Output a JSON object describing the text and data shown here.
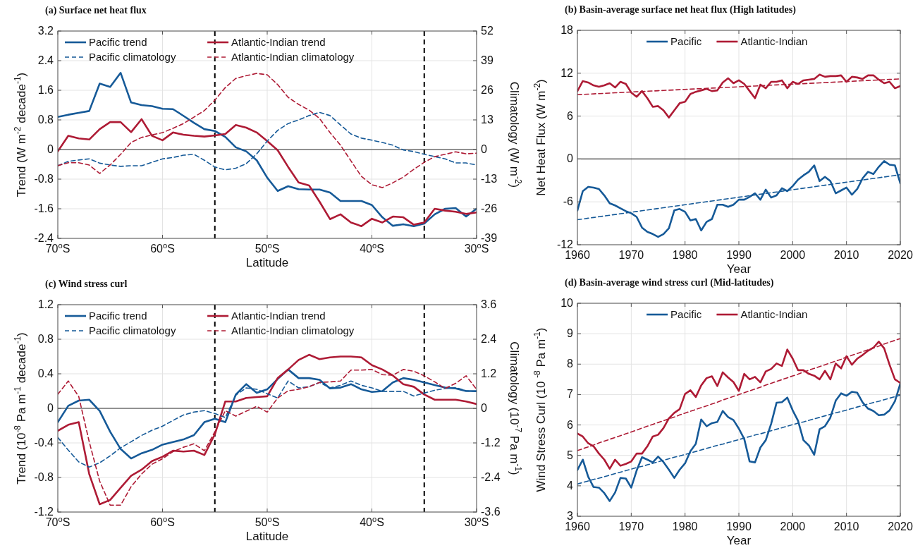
{
  "chart_data": [
    {
      "type": "line",
      "title": "(a) Surface net heat flux",
      "xlabel": "Latitude",
      "ylabel": "Trend  (W m$^{-2}$ decade$^{-1}$)",
      "y2label": "Climatology (W m$^{-2}$)",
      "x": [
        -70,
        -69,
        -68,
        -67,
        -66,
        -65,
        -64,
        -63,
        -62,
        -61,
        -60,
        -59,
        -58,
        -57,
        -56,
        -55,
        -54,
        -53,
        -52,
        -51,
        -50,
        -49,
        -48,
        -47,
        -46,
        -45,
        -44,
        -43,
        -42,
        -41,
        -40,
        -39,
        -38,
        -37,
        -36,
        -35,
        -34,
        -33,
        -32,
        -31,
        -30
      ],
      "xlim": [
        -70,
        -30
      ],
      "xticks": [
        {
          "value": -70,
          "label": "70$^{o}$S"
        },
        {
          "value": -60,
          "label": "60$^{o}$S"
        },
        {
          "value": -50,
          "label": "50$^{o}$S"
        },
        {
          "value": -40,
          "label": "40$^{o}$S"
        },
        {
          "value": -30,
          "label": "30$^{o}$S"
        }
      ],
      "ylim": [
        -2.4,
        3.2
      ],
      "yticks": [
        -2.4,
        -1.6,
        -0.8,
        0,
        0.8,
        1.6,
        2.4,
        3.2
      ],
      "y2lim": [
        -39,
        52
      ],
      "y2ticks": [
        -39,
        -26,
        -13,
        0,
        13,
        26,
        39,
        52
      ],
      "grid": true,
      "legend": "top left",
      "ref_lines": [
        {
          "axis": "y",
          "value": 0,
          "color": "#333333",
          "line_style": "solid"
        },
        {
          "axis": "x",
          "value": -55,
          "color": "#000000",
          "line_style": "dashed"
        },
        {
          "axis": "x",
          "value": -35,
          "color": "#000000",
          "line_style": "dashed"
        }
      ],
      "series": [
        {
          "name": "Pacific trend",
          "color": "#165a98",
          "line_style": "solid",
          "values": [
            0.88,
            0.94,
            0.99,
            1.04,
            1.78,
            1.69,
            2.07,
            1.27,
            1.2,
            1.17,
            1.1,
            1.09,
            0.91,
            0.72,
            0.55,
            0.5,
            0.34,
            0.06,
            -0.05,
            -0.29,
            -0.76,
            -1.12,
            -0.99,
            -1.07,
            -1.08,
            -1.08,
            -1.16,
            -1.39,
            -1.39,
            -1.39,
            -1.5,
            -1.83,
            -2.06,
            -2.02,
            -2.07,
            -2.0,
            -1.75,
            -1.6,
            -1.58,
            -1.81,
            -1.6
          ]
        },
        {
          "name": "Atlantic-Indian trend",
          "color": "#ae1b35",
          "line_style": "solid",
          "values": [
            -0.05,
            0.37,
            0.3,
            0.27,
            0.55,
            0.74,
            0.74,
            0.47,
            0.82,
            0.37,
            0.25,
            0.46,
            0.4,
            0.37,
            0.35,
            0.38,
            0.42,
            0.66,
            0.59,
            0.46,
            0.23,
            -0.02,
            -0.47,
            -0.89,
            -0.97,
            -1.41,
            -1.88,
            -1.75,
            -1.97,
            -2.07,
            -1.87,
            -1.97,
            -1.81,
            -1.83,
            -2.03,
            -1.97,
            -1.6,
            -1.65,
            -1.68,
            -1.74,
            -1.7
          ]
        },
        {
          "name": "Pacific climatology",
          "color": "#165a98",
          "line_style": "dashed",
          "axis": "y2",
          "values": [
            -7.1,
            -5.2,
            -4.6,
            -4.1,
            -6.0,
            -6.8,
            -7.4,
            -7.1,
            -7.1,
            -5.6,
            -4.1,
            -3.5,
            -2.5,
            -2.1,
            -4.7,
            -7.7,
            -8.9,
            -8.2,
            -6.2,
            -1.9,
            3.7,
            8.4,
            11.4,
            13.0,
            14.9,
            16.3,
            14.9,
            10.8,
            6.8,
            5.0,
            4.1,
            3.1,
            1.9,
            -0.2,
            -0.9,
            -2.1,
            -3.1,
            -4.1,
            -5.9,
            -5.9,
            -6.8
          ]
        },
        {
          "name": "Atlantic-Indian climatology",
          "color": "#ae1b35",
          "line_style": "dashed",
          "axis": "y2",
          "values": [
            -7.1,
            -5.8,
            -5.8,
            -6.8,
            -10.5,
            -6.8,
            -2.1,
            3.1,
            5.3,
            6.4,
            7.4,
            9.3,
            11.4,
            14.2,
            17.1,
            21.7,
            27.2,
            31.2,
            32.4,
            33.4,
            32.8,
            28.5,
            22.9,
            19.8,
            17.3,
            13.6,
            7.4,
            1.9,
            -5.0,
            -11.8,
            -15.5,
            -16.7,
            -14.6,
            -12.1,
            -8.7,
            -5.6,
            -3.1,
            -2.1,
            -1.0,
            -1.9,
            -1.6
          ]
        }
      ]
    },
    {
      "type": "line",
      "title": "(b) Basin-average surface net heat flux (High latitudes)",
      "xlabel": "Year",
      "ylabel": "Net Heat Flux (W m$^{-2}$)",
      "x": [
        1960,
        1961,
        1962,
        1963,
        1964,
        1965,
        1966,
        1967,
        1968,
        1969,
        1970,
        1971,
        1972,
        1973,
        1974,
        1975,
        1976,
        1977,
        1978,
        1979,
        1980,
        1981,
        1982,
        1983,
        1984,
        1985,
        1986,
        1987,
        1988,
        1989,
        1990,
        1991,
        1992,
        1993,
        1994,
        1995,
        1996,
        1997,
        1998,
        1999,
        2000,
        2001,
        2002,
        2003,
        2004,
        2005,
        2006,
        2007,
        2008,
        2009,
        2010,
        2011,
        2012,
        2013,
        2014,
        2015,
        2016,
        2017,
        2018,
        2019,
        2020
      ],
      "xlim": [
        1960,
        2020
      ],
      "xticks": [
        1960,
        1970,
        1980,
        1990,
        2000,
        2010,
        2020
      ],
      "ylim": [
        -12,
        18
      ],
      "yticks": [
        -12,
        -6,
        0,
        6,
        12,
        18
      ],
      "grid": true,
      "legend": "top",
      "ref_lines": [
        {
          "axis": "y",
          "value": 0,
          "color": "#333333",
          "line_style": "solid"
        }
      ],
      "series": [
        {
          "name": "Pacific",
          "color": "#165a98",
          "line_style": "solid",
          "values": [
            -7.2,
            -4.5,
            -3.9,
            -4.0,
            -4.2,
            -5.1,
            -6.2,
            -6.5,
            -6.9,
            -7.3,
            -7.6,
            -8.1,
            -9.6,
            -10.2,
            -10.5,
            -10.9,
            -10.5,
            -9.7,
            -7.2,
            -7.0,
            -7.4,
            -8.6,
            -8.4,
            -10.0,
            -8.8,
            -8.4,
            -6.4,
            -6.4,
            -6.7,
            -6.4,
            -5.7,
            -5.7,
            -5.3,
            -4.8,
            -5.7,
            -4.3,
            -5.4,
            -5.1,
            -4.1,
            -4.5,
            -3.8,
            -2.9,
            -2.3,
            -1.8,
            -0.9,
            -3.1,
            -2.5,
            -3.1,
            -4.8,
            -4.4,
            -4.0,
            -5.0,
            -4.2,
            -2.7,
            -1.8,
            -2.1,
            -1.1,
            -0.3,
            -0.8,
            -0.9,
            -3.4
          ]
        },
        {
          "name": "Atlantic-Indian",
          "color": "#ae1b35",
          "line_style": "solid",
          "values": [
            9.5,
            10.9,
            10.7,
            10.3,
            10.1,
            10.3,
            10.6,
            10.0,
            10.8,
            10.5,
            9.3,
            8.7,
            9.5,
            8.5,
            7.3,
            7.4,
            6.8,
            5.8,
            6.8,
            7.8,
            8.0,
            9.1,
            9.4,
            9.6,
            9.8,
            9.5,
            9.6,
            10.7,
            11.3,
            10.6,
            11.0,
            10.5,
            9.5,
            8.5,
            10.4,
            9.9,
            10.8,
            10.8,
            11.0,
            9.9,
            10.8,
            10.5,
            11.0,
            11.1,
            11.2,
            11.8,
            11.5,
            11.6,
            11.6,
            11.7,
            10.8,
            11.5,
            11.4,
            11.2,
            11.7,
            11.7,
            11.1,
            10.6,
            10.8,
            9.9,
            10.2
          ]
        },
        {
          "type": "line",
          "color": "#165a98",
          "line_style": "dashed",
          "values": [
            -8.5,
            -8.4,
            -8.29,
            -8.19,
            -8.08,
            -7.98,
            -7.87,
            -7.77,
            -7.66,
            -7.56,
            -7.45,
            -7.35,
            -7.24,
            -7.14,
            -7.03,
            -6.93,
            -6.82,
            -6.72,
            -6.61,
            -6.51,
            -6.4,
            -6.3,
            -6.19,
            -6.09,
            -5.98,
            -5.88,
            -5.77,
            -5.67,
            -5.56,
            -5.46,
            -5.35,
            -5.25,
            -5.14,
            -5.04,
            -4.93,
            -4.83,
            -4.72,
            -4.62,
            -4.51,
            -4.41,
            -4.3,
            -4.2,
            -4.09,
            -3.99,
            -3.88,
            -3.78,
            -3.67,
            -3.57,
            -3.46,
            -3.36,
            -3.25,
            -3.15,
            -3.04,
            -2.94,
            -2.83,
            -2.73,
            -2.62,
            -2.52,
            -2.41,
            -2.31,
            -2.2
          ]
        },
        {
          "type": "line",
          "color": "#ae1b35",
          "line_style": "dashed",
          "values": [
            9.0,
            9.04,
            9.07,
            9.11,
            9.15,
            9.18,
            9.22,
            9.26,
            9.29,
            9.33,
            9.37,
            9.4,
            9.44,
            9.48,
            9.51,
            9.55,
            9.59,
            9.62,
            9.66,
            9.7,
            9.73,
            9.77,
            9.81,
            9.84,
            9.88,
            9.92,
            9.95,
            9.99,
            10.03,
            10.06,
            10.1,
            10.14,
            10.17,
            10.21,
            10.25,
            10.28,
            10.32,
            10.36,
            10.39,
            10.43,
            10.47,
            10.5,
            10.54,
            10.58,
            10.61,
            10.65,
            10.69,
            10.72,
            10.76,
            10.8,
            10.83,
            10.87,
            10.91,
            10.94,
            10.98,
            11.02,
            11.05,
            11.09,
            11.13,
            11.16,
            11.2
          ]
        }
      ]
    },
    {
      "type": "line",
      "title": "(c) Wind stress curl",
      "xlabel": "Latitude",
      "ylabel": "Trend  (10$^{-8}$ Pa m$^{-1}$ decade$^{-1}$)",
      "y2label": "Climatology (10$^{-7}$ Pa m$^{-1}$)",
      "x": [
        -70,
        -69,
        -68,
        -67,
        -66,
        -65,
        -64,
        -63,
        -62,
        -61,
        -60,
        -59,
        -58,
        -57,
        -56,
        -55,
        -54,
        -53,
        -52,
        -51,
        -50,
        -49,
        -48,
        -47,
        -46,
        -45,
        -44,
        -43,
        -42,
        -41,
        -40,
        -39,
        -38,
        -37,
        -36,
        -35,
        -34,
        -33,
        -32,
        -31,
        -30
      ],
      "xlim": [
        -70,
        -30
      ],
      "xticks": [
        {
          "value": -70,
          "label": "70$^{o}$S"
        },
        {
          "value": -60,
          "label": "60$^{o}$S"
        },
        {
          "value": -50,
          "label": "50$^{o}$S"
        },
        {
          "value": -40,
          "label": "40$^{o}$S"
        },
        {
          "value": -30,
          "label": "30$^{o}$S"
        }
      ],
      "ylim": [
        -1.2,
        1.2
      ],
      "yticks": [
        -1.2,
        -0.8,
        -0.4,
        0,
        0.4,
        0.8,
        1.2
      ],
      "y2lim": [
        -3.6,
        3.6
      ],
      "y2ticks": [
        -3.6,
        -2.4,
        -1.2,
        0,
        1.2,
        2.4,
        3.6
      ],
      "grid": true,
      "legend": "top left",
      "ref_lines": [
        {
          "axis": "y",
          "value": 0,
          "color": "#333333",
          "line_style": "solid"
        },
        {
          "axis": "x",
          "value": -55,
          "color": "#000000",
          "line_style": "dashed"
        },
        {
          "axis": "x",
          "value": -35,
          "color": "#000000",
          "line_style": "dashed"
        }
      ],
      "series": [
        {
          "name": "Pacific trend",
          "color": "#165a98",
          "line_style": "solid",
          "values": [
            -0.16,
            0.03,
            0.09,
            0.1,
            -0.03,
            -0.27,
            -0.47,
            -0.58,
            -0.52,
            -0.48,
            -0.42,
            -0.39,
            -0.36,
            -0.31,
            -0.16,
            -0.12,
            -0.16,
            0.16,
            0.28,
            0.18,
            0.22,
            0.34,
            0.45,
            0.35,
            0.35,
            0.33,
            0.23,
            0.24,
            0.28,
            0.22,
            0.19,
            0.2,
            0.3,
            0.35,
            0.33,
            0.3,
            0.27,
            0.24,
            0.23,
            0.2,
            0.2
          ]
        },
        {
          "name": "Atlantic-Indian trend",
          "color": "#ae1b35",
          "line_style": "solid",
          "values": [
            -0.26,
            -0.19,
            -0.16,
            -0.76,
            -1.11,
            -1.06,
            -0.92,
            -0.78,
            -0.71,
            -0.61,
            -0.56,
            -0.49,
            -0.5,
            -0.49,
            -0.54,
            -0.3,
            0.08,
            0.08,
            0.12,
            0.13,
            0.14,
            0.35,
            0.45,
            0.56,
            0.62,
            0.57,
            0.59,
            0.6,
            0.6,
            0.59,
            0.5,
            0.45,
            0.38,
            0.28,
            0.25,
            0.16,
            0.1,
            0.1,
            0.1,
            0.08,
            0.05
          ]
        },
        {
          "name": "Pacific climatology",
          "color": "#165a98",
          "line_style": "dashed",
          "axis": "y2",
          "values": [
            -1.01,
            -1.45,
            -1.86,
            -2.04,
            -1.89,
            -1.65,
            -1.37,
            -1.16,
            -0.94,
            -0.76,
            -0.62,
            -0.42,
            -0.23,
            -0.13,
            -0.08,
            -0.18,
            -0.32,
            0.46,
            0.71,
            0.66,
            0.51,
            0.36,
            0.95,
            0.71,
            0.75,
            0.9,
            0.71,
            0.8,
            0.95,
            0.8,
            0.71,
            0.59,
            0.59,
            0.59,
            0.43,
            0.53,
            0.63,
            0.69,
            0.72,
            0.61,
            0.58
          ]
        },
        {
          "name": "Atlantic-Indian climatology",
          "color": "#ae1b35",
          "line_style": "dashed",
          "axis": "y2",
          "values": [
            0.49,
            0.95,
            0.41,
            -1.16,
            -2.53,
            -3.36,
            -3.36,
            -2.72,
            -2.28,
            -1.94,
            -1.75,
            -1.5,
            -1.35,
            -1.23,
            -1.47,
            -0.81,
            -0.08,
            -0.27,
            -0.1,
            0.07,
            -0.13,
            0.36,
            0.61,
            0.66,
            0.75,
            0.9,
            0.92,
            0.95,
            1.33,
            1.33,
            1.35,
            1.17,
            1.15,
            1.35,
            1.29,
            1.13,
            0.92,
            0.69,
            0.87,
            1.13,
            0.66
          ]
        }
      ]
    },
    {
      "type": "line",
      "title": "(d) Basin-average wind stress curl (Mid-latitudes)",
      "xlabel": "Year",
      "ylabel": "Wind Stress Curl (10 $^{-8}$ Pa m$^{-1}$)",
      "x": [
        1960,
        1961,
        1962,
        1963,
        1964,
        1965,
        1966,
        1967,
        1968,
        1969,
        1970,
        1971,
        1972,
        1973,
        1974,
        1975,
        1976,
        1977,
        1978,
        1979,
        1980,
        1981,
        1982,
        1983,
        1984,
        1985,
        1986,
        1987,
        1988,
        1989,
        1990,
        1991,
        1992,
        1993,
        1994,
        1995,
        1996,
        1997,
        1998,
        1999,
        2000,
        2001,
        2002,
        2003,
        2004,
        2005,
        2006,
        2007,
        2008,
        2009,
        2010,
        2011,
        2012,
        2013,
        2014,
        2015,
        2016,
        2017,
        2018,
        2019,
        2020
      ],
      "xlim": [
        1960,
        2020
      ],
      "xticks": [
        1960,
        1970,
        1980,
        1990,
        2000,
        2010,
        2020
      ],
      "ylim": [
        3,
        10
      ],
      "yticks": [
        3,
        4,
        5,
        6,
        7,
        8,
        9,
        10
      ],
      "grid": true,
      "legend": "top",
      "series": [
        {
          "name": "Pacific",
          "color": "#165a98",
          "line_style": "solid",
          "values": [
            4.52,
            4.86,
            4.3,
            3.96,
            3.94,
            3.76,
            3.5,
            3.78,
            4.26,
            4.24,
            3.94,
            4.5,
            4.94,
            4.86,
            4.77,
            4.96,
            4.78,
            4.53,
            4.26,
            4.53,
            4.74,
            5.14,
            5.38,
            6.18,
            5.96,
            6.06,
            6.1,
            6.46,
            6.26,
            6.16,
            5.88,
            5.54,
            4.8,
            4.77,
            5.26,
            5.5,
            6.04,
            6.73,
            6.75,
            6.9,
            6.48,
            6.14,
            5.5,
            5.33,
            5.02,
            5.86,
            5.96,
            6.24,
            6.8,
            7.04,
            6.96,
            7.09,
            7.06,
            6.74,
            6.54,
            6.46,
            6.32,
            6.34,
            6.48,
            6.78,
            7.36
          ]
        },
        {
          "name": "Atlantic-Indian",
          "color": "#ae1b35",
          "line_style": "solid",
          "values": [
            5.72,
            5.62,
            5.4,
            5.3,
            5.06,
            4.86,
            4.56,
            4.86,
            4.66,
            4.72,
            4.8,
            5.06,
            5.06,
            5.3,
            5.62,
            5.68,
            5.9,
            6.22,
            6.4,
            6.52,
            7.02,
            7.14,
            6.92,
            7.3,
            7.54,
            7.6,
            7.28,
            7.73,
            7.56,
            7.41,
            7.12,
            7.68,
            7.5,
            7.58,
            7.4,
            7.76,
            7.84,
            8.02,
            7.94,
            8.48,
            8.18,
            7.8,
            7.8,
            7.68,
            7.62,
            7.5,
            7.78,
            7.5,
            8.02,
            7.86,
            8.26,
            7.98,
            8.18,
            8.3,
            8.44,
            8.54,
            8.74,
            8.52,
            7.98,
            7.5,
            7.38
          ]
        },
        {
          "type": "line",
          "color": "#165a98",
          "line_style": "dashed",
          "values": [
            4.06,
            4.11,
            4.16,
            4.21,
            4.25,
            4.3,
            4.35,
            4.4,
            4.45,
            4.5,
            4.55,
            4.6,
            4.64,
            4.69,
            4.74,
            4.79,
            4.84,
            4.89,
            4.94,
            4.98,
            5.03,
            5.08,
            5.13,
            5.18,
            5.23,
            5.28,
            5.33,
            5.37,
            5.42,
            5.47,
            5.52,
            5.57,
            5.62,
            5.67,
            5.71,
            5.76,
            5.81,
            5.86,
            5.91,
            5.96,
            6.01,
            6.06,
            6.1,
            6.15,
            6.2,
            6.25,
            6.3,
            6.35,
            6.4,
            6.44,
            6.49,
            6.54,
            6.59,
            6.64,
            6.69,
            6.74,
            6.78,
            6.83,
            6.88,
            6.93,
            6.98
          ]
        },
        {
          "type": "line",
          "color": "#ae1b35",
          "line_style": "dashed",
          "values": [
            5.16,
            5.22,
            5.28,
            5.34,
            5.41,
            5.47,
            5.53,
            5.59,
            5.65,
            5.71,
            5.77,
            5.83,
            5.9,
            5.96,
            6.02,
            6.08,
            6.14,
            6.2,
            6.26,
            6.33,
            6.39,
            6.45,
            6.51,
            6.57,
            6.63,
            6.69,
            6.75,
            6.82,
            6.88,
            6.94,
            7.0,
            7.06,
            7.12,
            7.18,
            7.24,
            7.31,
            7.37,
            7.43,
            7.49,
            7.55,
            7.61,
            7.67,
            7.74,
            7.8,
            7.86,
            7.92,
            7.98,
            8.04,
            8.1,
            8.16,
            8.23,
            8.29,
            8.35,
            8.41,
            8.47,
            8.53,
            8.59,
            8.66,
            8.72,
            8.78,
            8.84
          ]
        }
      ]
    }
  ]
}
